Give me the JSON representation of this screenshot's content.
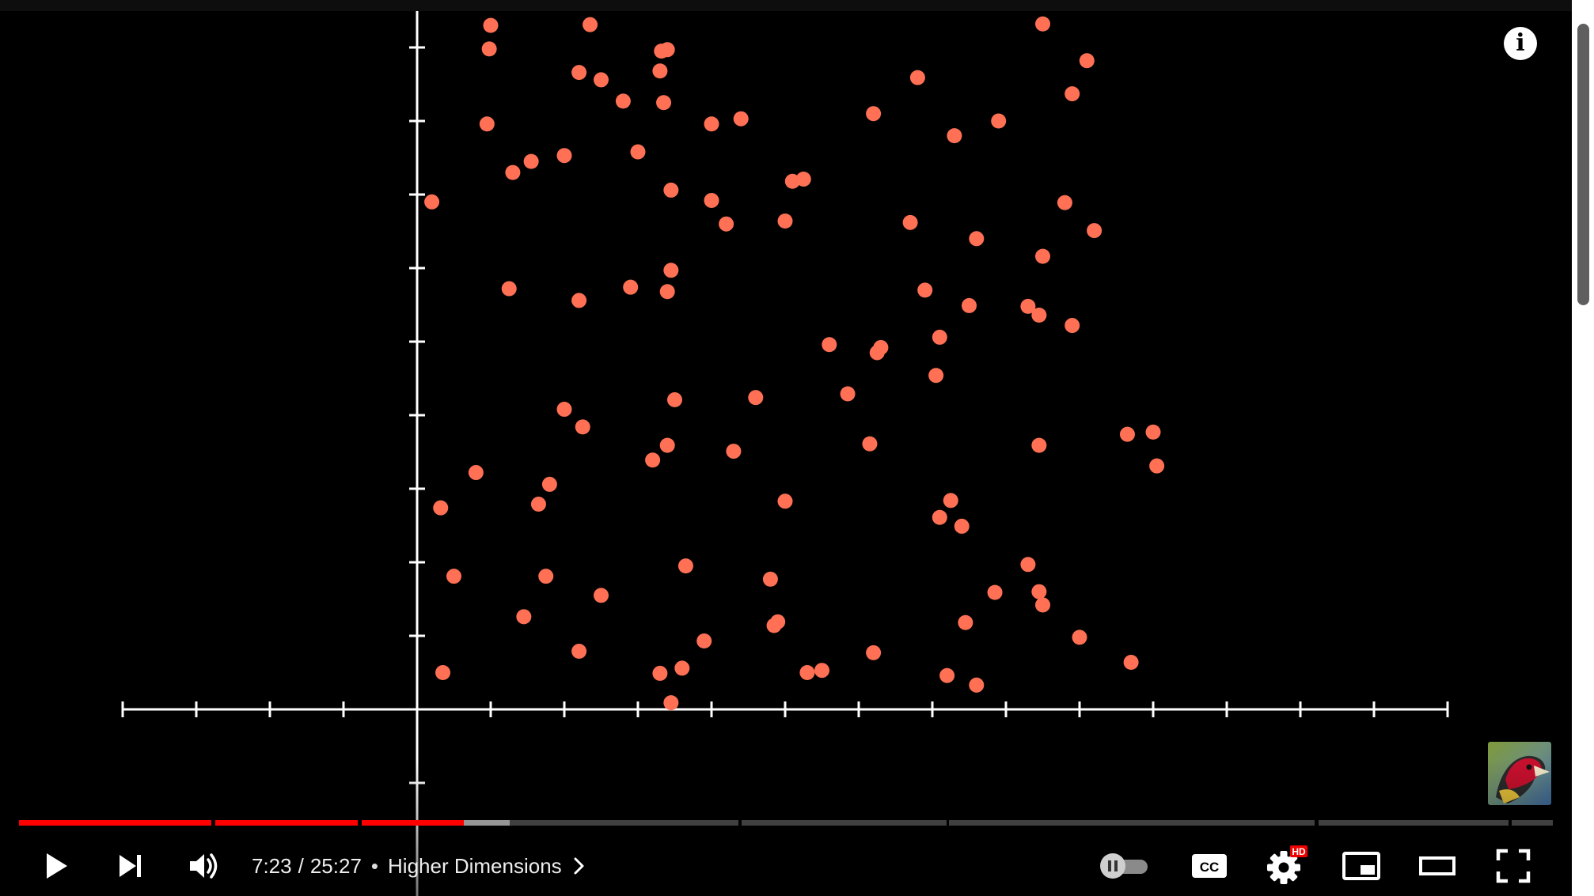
{
  "player": {
    "time": {
      "current": "7:23",
      "separator": "/",
      "duration": "25:27"
    },
    "dot": "•",
    "chapter_title": "Higher Dimensions",
    "progress": {
      "played_fraction": 0.29,
      "buffered_fraction": 0.32
    },
    "info_icon_glyph": "i",
    "icons": [
      "play-icon",
      "next-icon",
      "volume-icon",
      "chevron-right-icon",
      "autoplay-toggle-icon",
      "captions-icon",
      "settings-icon",
      "pip-icon",
      "theater-icon",
      "fullscreen-icon",
      "info-icon"
    ],
    "badges": {
      "quality": "HD",
      "captions": "CC"
    },
    "colors": {
      "accent": "#ff0000",
      "dot": "#ff7055",
      "axis": "#ffffff",
      "background": "#000000"
    }
  },
  "video_frame": {
    "x_axis": {
      "min": -4,
      "max": 14,
      "tick_step": 1
    },
    "y_axis": {
      "min": -1,
      "max": 9.3,
      "tick_step": 1
    },
    "points": [
      [
        1.0,
        9.3
      ],
      [
        2.35,
        9.31
      ],
      [
        8.5,
        9.32
      ],
      [
        0.98,
        8.98
      ],
      [
        3.4,
        8.97
      ],
      [
        3.32,
        8.95
      ],
      [
        9.1,
        8.82
      ],
      [
        2.2,
        8.66
      ],
      [
        3.3,
        8.68
      ],
      [
        2.5,
        8.56
      ],
      [
        6.8,
        8.59
      ],
      [
        8.9,
        8.37
      ],
      [
        4.4,
        8.03
      ],
      [
        7.9,
        8.0
      ],
      [
        2.8,
        8.27
      ],
      [
        3.35,
        8.25
      ],
      [
        6.2,
        8.1
      ],
      [
        4.0,
        7.96
      ],
      [
        0.95,
        7.96
      ],
      [
        7.3,
        7.8
      ],
      [
        3.0,
        7.58
      ],
      [
        1.55,
        7.45
      ],
      [
        2.0,
        7.53
      ],
      [
        1.3,
        7.3
      ],
      [
        5.25,
        7.21
      ],
      [
        5.1,
        7.18
      ],
      [
        3.45,
        7.06
      ],
      [
        0.2,
        6.9
      ],
      [
        4.0,
        6.92
      ],
      [
        5.0,
        6.64
      ],
      [
        8.8,
        6.89
      ],
      [
        4.2,
        6.6
      ],
      [
        8.5,
        6.16
      ],
      [
        6.7,
        6.62
      ],
      [
        7.6,
        6.4
      ],
      [
        9.2,
        6.51
      ],
      [
        3.45,
        5.97
      ],
      [
        1.25,
        5.72
      ],
      [
        2.2,
        5.56
      ],
      [
        2.9,
        5.74
      ],
      [
        3.4,
        5.68
      ],
      [
        6.9,
        5.7
      ],
      [
        7.5,
        5.49
      ],
      [
        8.3,
        5.48
      ],
      [
        8.45,
        5.36
      ],
      [
        8.9,
        5.22
      ],
      [
        7.1,
        5.06
      ],
      [
        5.6,
        4.96
      ],
      [
        6.3,
        4.92
      ],
      [
        6.25,
        4.85
      ],
      [
        7.05,
        4.54
      ],
      [
        4.6,
        4.24
      ],
      [
        5.85,
        4.29
      ],
      [
        3.5,
        4.21
      ],
      [
        2.0,
        4.08
      ],
      [
        2.25,
        3.84
      ],
      [
        10.0,
        3.77
      ],
      [
        9.65,
        3.74
      ],
      [
        10.05,
        3.31
      ],
      [
        6.15,
        3.61
      ],
      [
        8.45,
        3.59
      ],
      [
        3.4,
        3.59
      ],
      [
        4.3,
        3.51
      ],
      [
        3.2,
        3.39
      ],
      [
        0.8,
        3.22
      ],
      [
        1.8,
        3.06
      ],
      [
        1.65,
        2.79
      ],
      [
        5.0,
        2.83
      ],
      [
        0.32,
        2.74
      ],
      [
        7.25,
        2.84
      ],
      [
        7.1,
        2.61
      ],
      [
        7.4,
        2.49
      ],
      [
        8.3,
        1.97
      ],
      [
        3.65,
        1.95
      ],
      [
        0.5,
        1.81
      ],
      [
        1.75,
        1.81
      ],
      [
        4.8,
        1.77
      ],
      [
        7.85,
        1.59
      ],
      [
        8.45,
        1.6
      ],
      [
        2.5,
        1.55
      ],
      [
        8.5,
        1.42
      ],
      [
        1.45,
        1.26
      ],
      [
        7.45,
        1.18
      ],
      [
        4.9,
        1.19
      ],
      [
        4.85,
        1.14
      ],
      [
        3.9,
        0.93
      ],
      [
        9.0,
        0.98
      ],
      [
        2.2,
        0.79
      ],
      [
        6.2,
        0.77
      ],
      [
        9.7,
        0.64
      ],
      [
        3.6,
        0.56
      ],
      [
        3.3,
        0.49
      ],
      [
        5.5,
        0.53
      ],
      [
        5.3,
        0.5
      ],
      [
        0.35,
        0.5
      ],
      [
        7.2,
        0.46
      ],
      [
        7.6,
        0.33
      ],
      [
        3.45,
        0.09
      ]
    ]
  }
}
